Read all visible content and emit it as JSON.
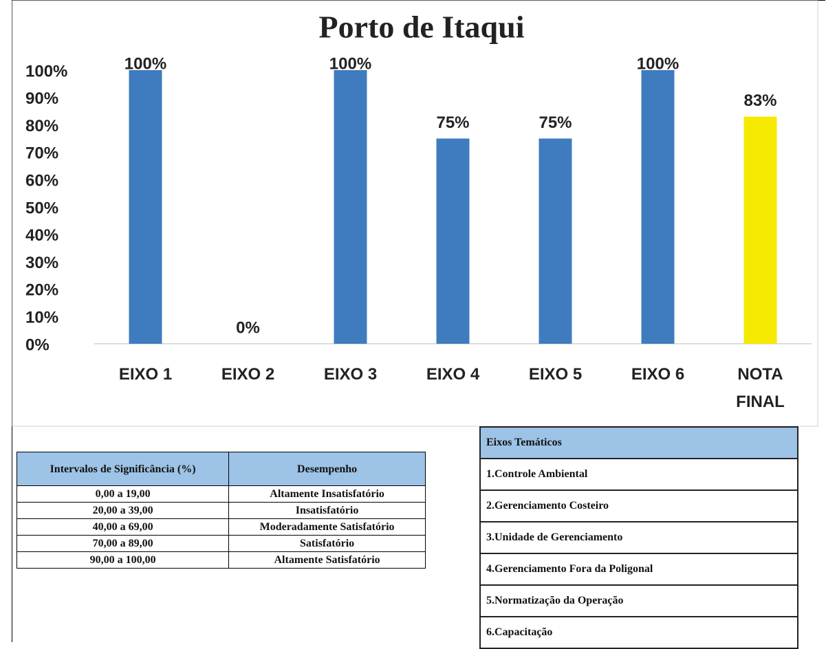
{
  "chart_data": {
    "type": "bar",
    "title": "Porto de Itaqui",
    "categories": [
      "EIXO 1",
      "EIXO 2",
      "EIXO 3",
      "EIXO 4",
      "EIXO 5",
      "EIXO 6",
      "NOTA FINAL"
    ],
    "values": [
      100,
      0,
      100,
      75,
      75,
      100,
      83
    ],
    "value_labels": [
      "100%",
      "0%",
      "100%",
      "75%",
      "75%",
      "100%",
      "83%"
    ],
    "colors": [
      "#3f7cbf",
      "#3f7cbf",
      "#3f7cbf",
      "#3f7cbf",
      "#3f7cbf",
      "#3f7cbf",
      "#f5e900"
    ],
    "ylim": [
      0,
      100
    ],
    "yticks": [
      {
        "value": 0,
        "label": "0%"
      },
      {
        "value": 10,
        "label": "10%"
      },
      {
        "value": 20,
        "label": "20%"
      },
      {
        "value": 30,
        "label": "30%"
      },
      {
        "value": 40,
        "label": "40%"
      },
      {
        "value": 50,
        "label": "50%"
      },
      {
        "value": 60,
        "label": "60%"
      },
      {
        "value": 70,
        "label": "70%"
      },
      {
        "value": 80,
        "label": "80%"
      },
      {
        "value": 90,
        "label": "90%"
      },
      {
        "value": 100,
        "label": "100%"
      }
    ],
    "grid": false
  },
  "significance_table": {
    "header": [
      "Intervalos de Significância (%)",
      "Desempenho"
    ],
    "rows": [
      [
        "0,00 a 19,00",
        "Altamente Insatisfatório"
      ],
      [
        "20,00 a 39,00",
        "Insatisfatório"
      ],
      [
        "40,00 a 69,00",
        "Moderadamente Satisfatório"
      ],
      [
        "70,00 a 89,00",
        "Satisfatório"
      ],
      [
        "90,00 a 100,00",
        "Altamente Satisfatório"
      ]
    ]
  },
  "axes_table": {
    "header": "Eixos Temáticos",
    "rows": [
      "1.Controle Ambiental",
      "2.Gerenciamento Costeiro",
      "3.Unidade de Gerenciamento",
      "4.Gerenciamento Fora da Poligonal",
      "5.Normatização da Operação",
      "6.Capacitação"
    ]
  }
}
